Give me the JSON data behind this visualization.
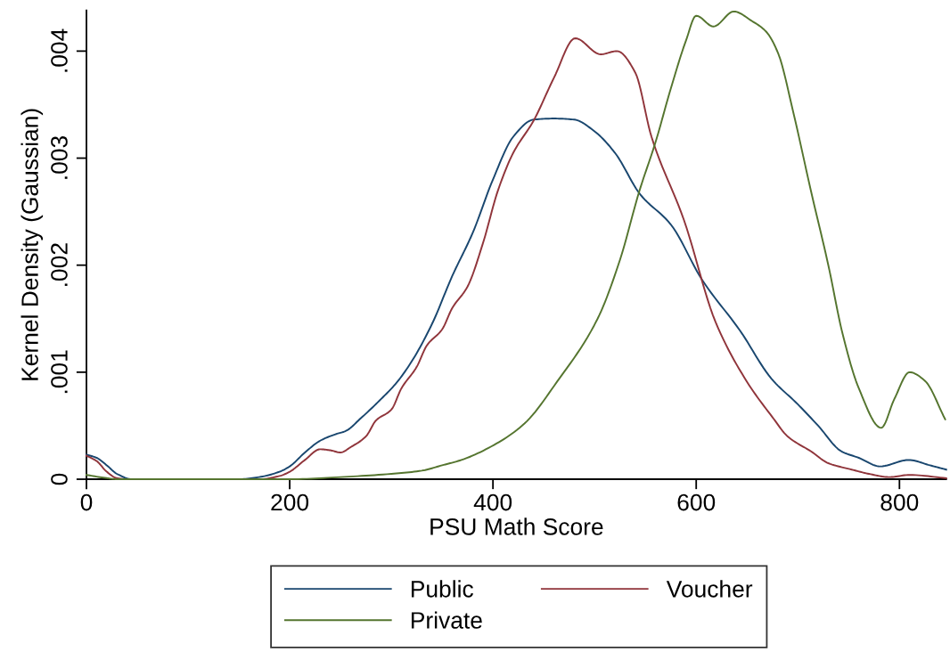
{
  "chart_data": {
    "type": "line",
    "xlabel": "PSU Math Score",
    "ylabel": "Kernel Density (Gaussian)",
    "xlim": [
      0,
      846
    ],
    "ylim": [
      0,
      0.00438
    ],
    "xticks": [
      0,
      200,
      400,
      600,
      800
    ],
    "yticks": [
      0,
      {
        "value": 0.001,
        "label": ".001"
      },
      {
        "value": 0.002,
        "label": ".002"
      },
      {
        "value": 0.003,
        "label": ".003"
      },
      {
        "value": 0.004,
        "label": ".004"
      }
    ],
    "grid": false,
    "legend": "bottom",
    "marker": "none",
    "line_style": "solid",
    "series": [
      {
        "name": "Public",
        "color": "#1a476f",
        "x": [
          0,
          10,
          20,
          30,
          45,
          100,
          150,
          170,
          190,
          200,
          215,
          230,
          245,
          255,
          270,
          290,
          305,
          320,
          340,
          360,
          380,
          400,
          420,
          440,
          460,
          480,
          500,
          520,
          545,
          575,
          606,
          643,
          674,
          700,
          720,
          743,
          760,
          781,
          809,
          830,
          846
        ],
        "values": [
          0.00023,
          0.0002,
          0.00013,
          5e-05,
          0.0,
          0.0,
          0.0,
          2e-05,
          7e-05,
          0.00012,
          0.00025,
          0.00036,
          0.00042,
          0.00045,
          0.00057,
          0.00075,
          0.0009,
          0.0011,
          0.00145,
          0.0019,
          0.0023,
          0.0028,
          0.0032,
          0.00336,
          0.00337,
          0.00336,
          0.00325,
          0.00305,
          0.00266,
          0.00238,
          0.00186,
          0.00139,
          0.00094,
          0.0007,
          0.0005,
          0.00026,
          0.0002,
          0.00012,
          0.00018,
          0.00013,
          9e-05
        ]
      },
      {
        "name": "Voucher",
        "color": "#90353b",
        "x": [
          0,
          10,
          20,
          30,
          40,
          170,
          190,
          200,
          215,
          230,
          240,
          250,
          260,
          275,
          285,
          300,
          310,
          325,
          335,
          350,
          360,
          375,
          390,
          405,
          420,
          440,
          460,
          481,
          506,
          522,
          540,
          556,
          588,
          619,
          650,
          675,
          690,
          713,
          730,
          753,
          770,
          790,
          810,
          846
        ],
        "values": [
          0.00022,
          0.00017,
          7e-05,
          1e-05,
          0.0,
          0.0,
          3e-05,
          7e-05,
          0.00018,
          0.00028,
          0.00027,
          0.00025,
          0.0003,
          0.0004,
          0.00055,
          0.00065,
          0.00085,
          0.00105,
          0.00125,
          0.0014,
          0.0016,
          0.0018,
          0.0022,
          0.0027,
          0.00305,
          0.00335,
          0.00375,
          0.00412,
          0.00397,
          0.004,
          0.0038,
          0.0032,
          0.00242,
          0.00147,
          0.00091,
          0.00058,
          0.0004,
          0.00026,
          0.00015,
          9e-05,
          5e-05,
          2e-05,
          4e-05,
          1e-05
        ]
      },
      {
        "name": "Private",
        "color": "#55752f",
        "x": [
          0,
          20,
          30,
          200,
          250,
          300,
          330,
          350,
          369,
          401,
          431,
          463,
          503,
          525,
          544,
          560,
          575,
          590,
          600,
          617,
          637,
          655,
          669,
          681,
          695,
          713,
          730,
          744,
          760,
          782,
          795,
          810,
          825,
          845
        ],
        "values": [
          4e-05,
          1e-05,
          0.0,
          0.0,
          2e-05,
          5e-05,
          8e-05,
          0.00013,
          0.00018,
          0.00032,
          0.00052,
          0.00091,
          0.0015,
          0.00205,
          0.00269,
          0.00315,
          0.00365,
          0.0041,
          0.00433,
          0.00423,
          0.00437,
          0.00428,
          0.00418,
          0.00397,
          0.00345,
          0.00269,
          0.002,
          0.00136,
          0.00085,
          0.00048,
          0.00075,
          0.001,
          0.00092,
          0.00056
        ]
      }
    ]
  }
}
